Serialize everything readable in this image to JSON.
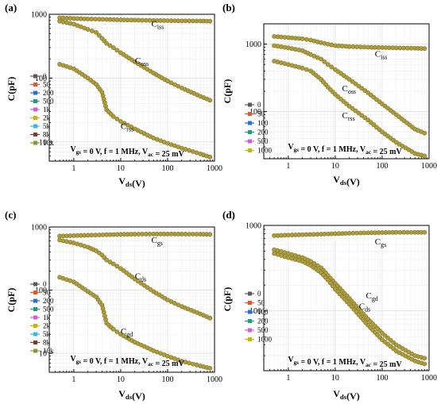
{
  "figure": {
    "background": "#ffffff"
  },
  "legend_colors": [
    "#5a5a5a",
    "#e8552a",
    "#2a6fd0",
    "#1aa07a",
    "#d35cd6",
    "#c6b800",
    "#35b9e6",
    "#7b3c2c",
    "#8a9a2a"
  ],
  "chart_data": [
    {
      "type": "line",
      "panel_label": "(a)",
      "xlabel": "V_ds(V)",
      "ylabel": "C(pF)",
      "xscale": "log",
      "yscale": "log",
      "xlim": [
        0.3,
        1000
      ],
      "ylim": [
        5,
        1000
      ],
      "xticks": [
        1,
        10,
        100,
        1000
      ],
      "xtick_labels": [
        "1",
        "10",
        "100",
        "1000"
      ],
      "yticks": [
        10,
        100,
        1000
      ],
      "ytick_labels": [
        "10",
        "100",
        "1000"
      ],
      "grid": true,
      "legend_placement": "left",
      "legend_entries": [
        "0",
        "50",
        "200",
        "500",
        "1k",
        "2k",
        "5k",
        "8k",
        "10k"
      ],
      "annotation": "V_gs = 0 V, f = 1 MHz, V_ac = 25 mV",
      "curves": [
        {
          "label": "C_iss",
          "x": [
            0.5,
            1,
            2,
            5,
            10,
            20,
            50,
            100,
            200,
            500,
            800
          ],
          "y": [
            880,
            860,
            845,
            830,
            818,
            810,
            800,
            795,
            790,
            785,
            780
          ],
          "label_x": 45,
          "label_y": 640
        },
        {
          "label": "C_oss",
          "x": [
            0.5,
            1,
            2,
            3,
            4,
            5,
            7,
            10,
            20,
            50,
            100,
            200,
            500,
            800
          ],
          "y": [
            780,
            700,
            580,
            520,
            420,
            350,
            300,
            250,
            180,
            120,
            90,
            70,
            52,
            45
          ],
          "label_x": 20,
          "label_y": 170
        },
        {
          "label": "C_rss",
          "x": [
            0.5,
            1,
            2,
            3,
            4,
            5,
            7,
            10,
            20,
            50,
            100,
            200,
            500,
            800
          ],
          "y": [
            165,
            140,
            100,
            80,
            60,
            32,
            25,
            21,
            16,
            11.5,
            9.5,
            8,
            6.5,
            5.8
          ],
          "label_x": 10,
          "label_y": 16
        }
      ]
    },
    {
      "type": "line",
      "panel_label": "(b)",
      "xlabel": "V_ds(V)",
      "ylabel": "C(pF)",
      "xscale": "log",
      "yscale": "log",
      "xlim": [
        0.3,
        1000
      ],
      "ylim": [
        20,
        2000
      ],
      "xticks": [
        1,
        10,
        100,
        1000
      ],
      "xtick_labels": [
        "1",
        "10",
        "100",
        "1000"
      ],
      "yticks": [
        100,
        1000
      ],
      "ytick_labels": [
        "100",
        "1000"
      ],
      "grid": true,
      "legend_placement": "left",
      "legend_entries": [
        "0",
        "50",
        "100",
        "200",
        "500",
        "1000"
      ],
      "annotation": "V_gs = 0 V, f = 1 MHz, V_ac = 25 mV",
      "curves": [
        {
          "label": "C_iss",
          "x": [
            0.5,
            1,
            2,
            3,
            5,
            7,
            10,
            20,
            50,
            100,
            200,
            500,
            800
          ],
          "y": [
            1300,
            1250,
            1200,
            1150,
            1050,
            1000,
            950,
            920,
            900,
            890,
            880,
            870,
            860
          ],
          "label_x": 70,
          "label_y": 650
        },
        {
          "label": "C_oss",
          "x": [
            0.5,
            1,
            2,
            3,
            5,
            7,
            10,
            20,
            50,
            100,
            200,
            500,
            800
          ],
          "y": [
            950,
            880,
            800,
            700,
            600,
            500,
            420,
            300,
            190,
            130,
            90,
            55,
            48
          ],
          "label_x": 14,
          "label_y": 200
        },
        {
          "label": "C_rss",
          "x": [
            0.5,
            1,
            2,
            3,
            5,
            7,
            10,
            20,
            50,
            100,
            200,
            500,
            800
          ],
          "y": [
            560,
            500,
            440,
            400,
            300,
            230,
            180,
            120,
            75,
            50,
            35,
            24,
            22
          ],
          "label_x": 14,
          "label_y": 80
        }
      ]
    },
    {
      "type": "line",
      "panel_label": "(c)",
      "xlabel": "V_ds(V)",
      "ylabel": "C(pF)",
      "xscale": "log",
      "yscale": "log",
      "xlim": [
        0.3,
        1000
      ],
      "ylim": [
        5,
        1000
      ],
      "xticks": [
        1,
        10,
        100,
        1000
      ],
      "xtick_labels": [
        "1",
        "10",
        "100",
        "1000"
      ],
      "yticks": [
        10,
        100,
        1000
      ],
      "ytick_labels": [
        "10",
        "100",
        "1000"
      ],
      "grid": true,
      "legend_placement": "left",
      "legend_entries": [
        "0",
        "50",
        "200",
        "500",
        "1k",
        "2k",
        "5k",
        "8k",
        "10k"
      ],
      "annotation": "V_gs = 0 V, f = 1 MHz, V_ac = 25 mV",
      "curves": [
        {
          "label": "C_gs",
          "x": [
            0.5,
            1,
            2,
            5,
            10,
            20,
            50,
            100,
            200,
            500,
            800
          ],
          "y": [
            720,
            730,
            740,
            755,
            765,
            770,
            775,
            775,
            772,
            770,
            765
          ],
          "label_x": 45,
          "label_y": 560
        },
        {
          "label": "C_ds",
          "x": [
            0.5,
            1,
            2,
            3,
            4,
            5,
            7,
            10,
            20,
            50,
            100,
            200,
            500,
            800
          ],
          "y": [
            620,
            560,
            480,
            420,
            360,
            300,
            260,
            220,
            150,
            95,
            70,
            55,
            42,
            36
          ],
          "label_x": 20,
          "label_y": 150
        },
        {
          "label": "C_gd",
          "x": [
            0.5,
            1,
            2,
            3,
            4,
            5,
            7,
            10,
            20,
            50,
            100,
            200,
            500,
            800
          ],
          "y": [
            160,
            135,
            95,
            78,
            58,
            30,
            24,
            20,
            15,
            11,
            9,
            7.5,
            6.3,
            5.8
          ],
          "label_x": 10,
          "label_y": 20
        }
      ]
    },
    {
      "type": "line",
      "panel_label": "(d)",
      "xlabel": "V_ds(V)",
      "ylabel": "C(pF)",
      "xscale": "log",
      "yscale": "log",
      "xlim": [
        0.3,
        1000
      ],
      "ylim": [
        20,
        1000
      ],
      "xticks": [
        1,
        10,
        100,
        1000
      ],
      "xtick_labels": [
        "1",
        "10",
        "100",
        "1000"
      ],
      "yticks": [
        100,
        1000
      ],
      "ytick_labels": [
        "100",
        "1000"
      ],
      "grid": true,
      "legend_placement": "left",
      "legend_entries": [
        "0",
        "50",
        "100",
        "200",
        "500",
        "1000"
      ],
      "annotation": "V_gs = 0 V, f = 1 MHz, V_ac = 25 mV",
      "curves": [
        {
          "label": "C_gs",
          "x": [
            0.5,
            1,
            2,
            5,
            10,
            20,
            50,
            100,
            200,
            500,
            800
          ],
          "y": [
            760,
            770,
            780,
            790,
            800,
            810,
            820,
            825,
            830,
            830,
            830
          ],
          "label_x": 70,
          "label_y": 600
        },
        {
          "label": "C_gd",
          "x": [
            0.5,
            1,
            2,
            3,
            5,
            7,
            10,
            20,
            50,
            100,
            200,
            500,
            800
          ],
          "y": [
            520,
            470,
            420,
            380,
            320,
            260,
            210,
            140,
            80,
            55,
            40,
            30,
            28
          ],
          "label_x": 45,
          "label_y": 140
        },
        {
          "label": "C_ds",
          "x": [
            0.5,
            1,
            2,
            3,
            5,
            7,
            10,
            20,
            50,
            100,
            200,
            500,
            800
          ],
          "y": [
            470,
            420,
            380,
            340,
            280,
            230,
            180,
            120,
            68,
            46,
            34,
            26,
            24
          ],
          "label_x": 32,
          "label_y": 105
        }
      ]
    }
  ]
}
